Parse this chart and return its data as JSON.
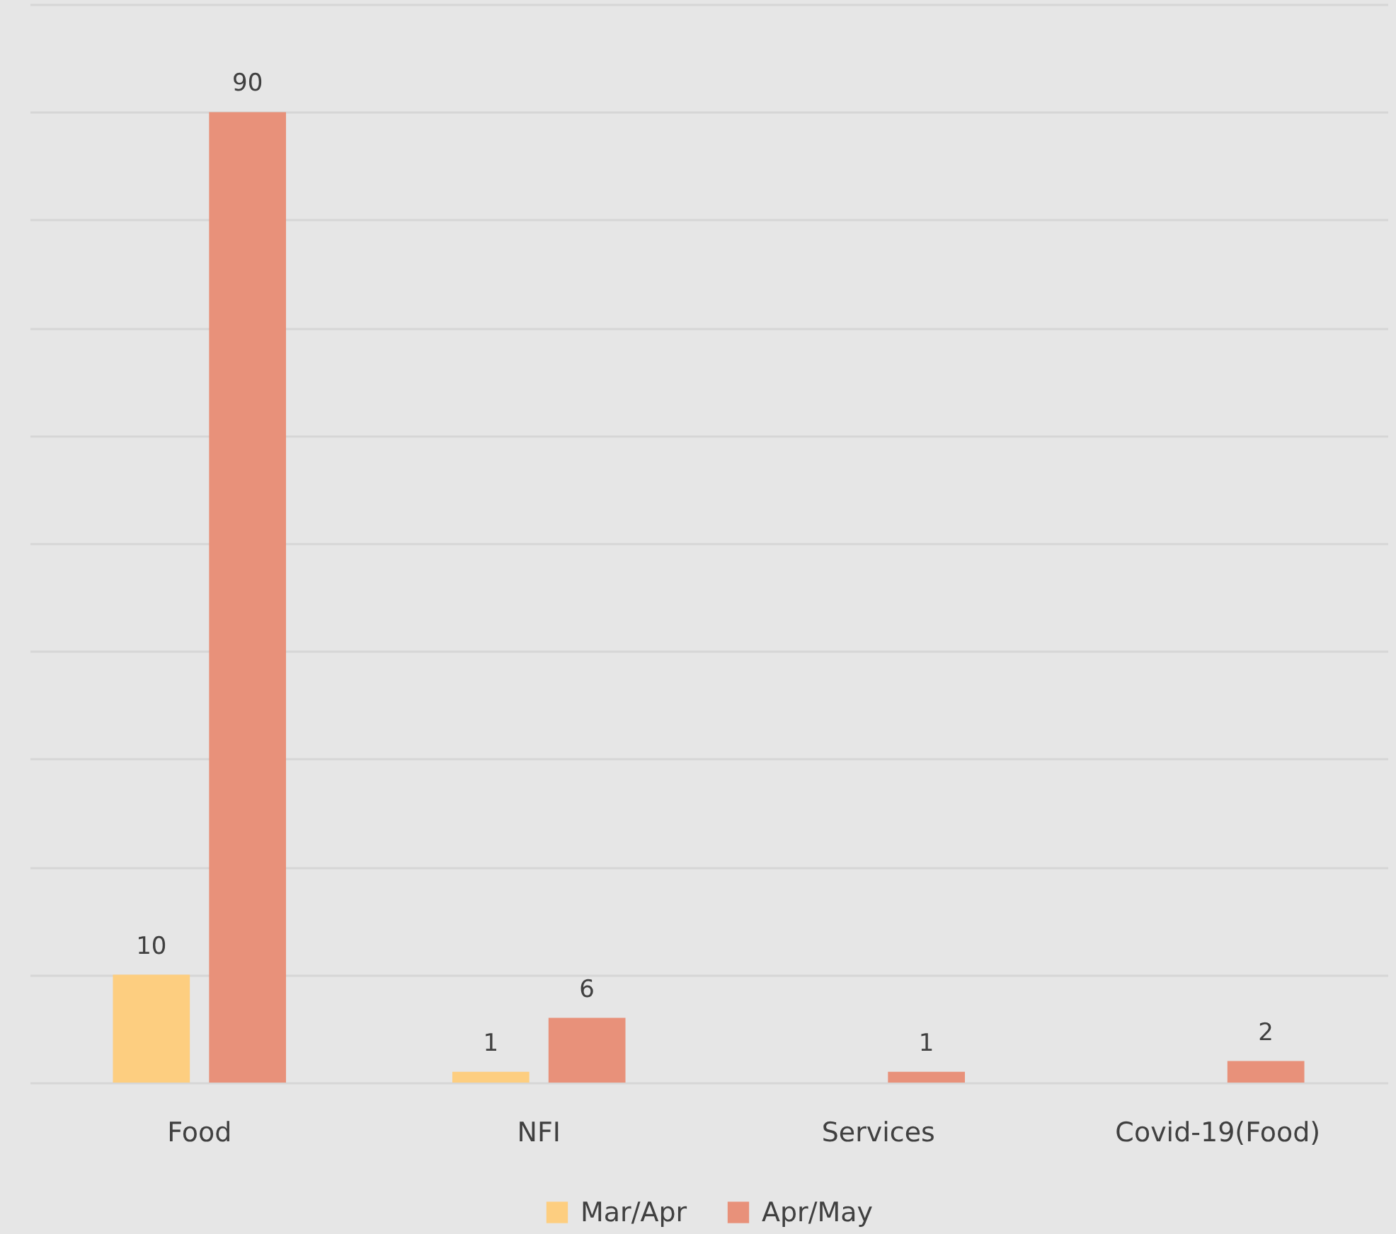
{
  "chart_data": {
    "type": "bar",
    "categories": [
      "Food",
      "NFI",
      "Services",
      "Covid-19(Food)"
    ],
    "series": [
      {
        "name": "Mar/Apr",
        "color": "#fdce80",
        "values": [
          10,
          1,
          null,
          null
        ]
      },
      {
        "name": "Apr/May",
        "color": "#e8917a",
        "values": [
          90,
          6,
          1,
          2
        ]
      }
    ],
    "ylim": [
      0,
      100
    ],
    "yticks": [
      {
        "value": 0,
        "label": null
      },
      {
        "value": 10,
        "label": null
      },
      {
        "value": 20,
        "label": null
      },
      {
        "value": 30,
        "label": null
      },
      {
        "value": 40,
        "label": null
      },
      {
        "value": 50,
        "label": null
      },
      {
        "value": 60,
        "label": null
      },
      {
        "value": 70,
        "label": null
      },
      {
        "value": 80,
        "label": null
      },
      {
        "value": 90,
        "label": null
      },
      {
        "value": 100,
        "label": null
      }
    ],
    "grid": "y",
    "legend": "bottom",
    "data_labels": true,
    "tick_labels": "x"
  }
}
